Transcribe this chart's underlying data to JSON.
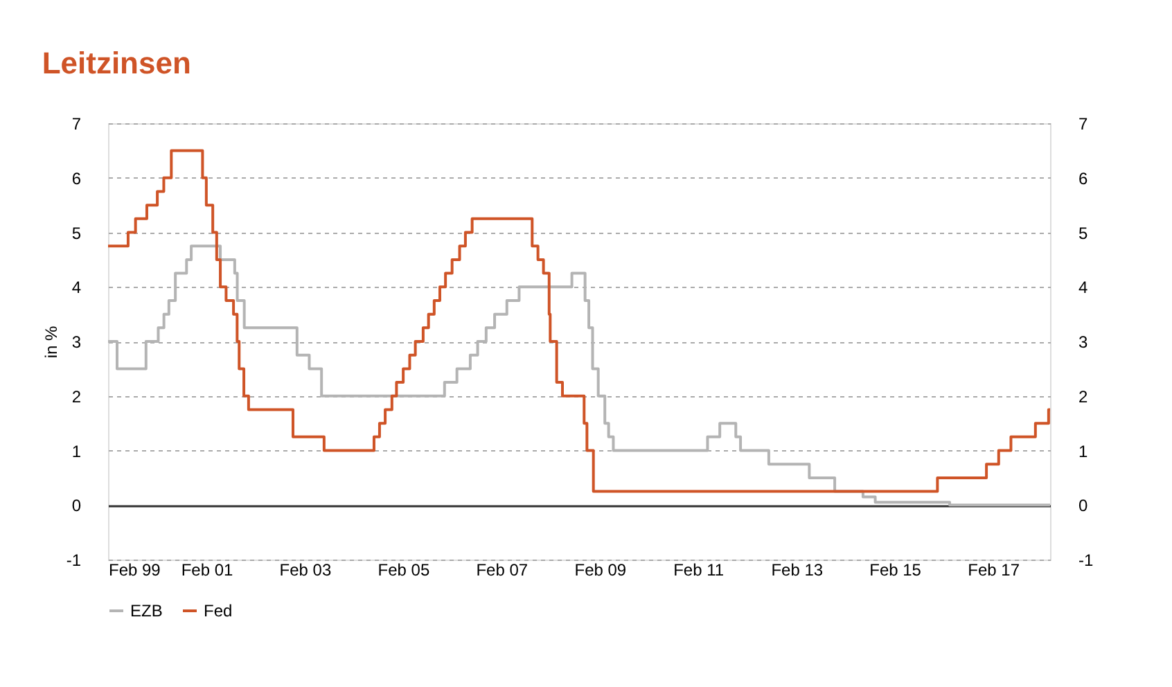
{
  "chart_data": {
    "type": "step",
    "title": "Leitzinsen",
    "ylabel": "in %",
    "xlim": [
      "1999-02-01",
      "2018-04-01"
    ],
    "xticks": [
      {
        "value": "1999-02-01",
        "label": "Feb 99"
      },
      {
        "value": "2001-02-01",
        "label": "Feb 01"
      },
      {
        "value": "2003-02-01",
        "label": "Feb 03"
      },
      {
        "value": "2005-02-01",
        "label": "Feb 05"
      },
      {
        "value": "2007-02-01",
        "label": "Feb 07"
      },
      {
        "value": "2009-02-01",
        "label": "Feb 09"
      },
      {
        "value": "2011-02-01",
        "label": "Feb 11"
      },
      {
        "value": "2013-02-01",
        "label": "Feb 13"
      },
      {
        "value": "2015-02-01",
        "label": "Feb 15"
      },
      {
        "value": "2017-02-01",
        "label": "Feb 17"
      }
    ],
    "ylim": [
      -1,
      7
    ],
    "yticks": [
      -1,
      0,
      1,
      2,
      3,
      4,
      5,
      6,
      7
    ],
    "y2lim": [
      -1,
      7
    ],
    "y2ticks": [
      -1,
      0,
      1,
      2,
      3,
      4,
      5,
      6,
      7
    ],
    "grid": "y",
    "legend": "bottom",
    "line_style": "solid",
    "series": [
      {
        "name": "EZB",
        "color": "#b4b4b4",
        "x": [
          "1999-02-01",
          "1999-04-09",
          "1999-11-10",
          "2000-02-09",
          "2000-03-22",
          "2000-04-28",
          "2000-06-15",
          "2000-09-06",
          "2000-10-11",
          "2001-05-15",
          "2001-08-30",
          "2001-09-18",
          "2001-11-09",
          "2002-12-06",
          "2003-03-07",
          "2003-06-06",
          "2005-12-06",
          "2006-03-08",
          "2006-06-15",
          "2006-08-09",
          "2006-10-11",
          "2006-12-13",
          "2007-03-14",
          "2007-06-13",
          "2008-07-09",
          "2008-10-15",
          "2008-11-12",
          "2008-12-10",
          "2009-01-21",
          "2009-03-11",
          "2009-04-08",
          "2009-05-13",
          "2011-04-13",
          "2011-07-13",
          "2011-11-09",
          "2011-12-14",
          "2012-07-11",
          "2013-05-08",
          "2013-11-13",
          "2014-06-11",
          "2014-09-10",
          "2016-03-16",
          "2018-04-01"
        ],
        "values": [
          3.0,
          2.5,
          3.0,
          3.25,
          3.5,
          3.75,
          4.25,
          4.5,
          4.75,
          4.5,
          4.25,
          3.75,
          3.25,
          2.75,
          2.5,
          2.0,
          2.25,
          2.5,
          2.75,
          3.0,
          3.25,
          3.5,
          3.75,
          4.0,
          4.25,
          3.75,
          3.25,
          2.5,
          2.0,
          1.5,
          1.25,
          1.0,
          1.25,
          1.5,
          1.25,
          1.0,
          0.75,
          0.5,
          0.25,
          0.15,
          0.05,
          0.0,
          0.0
        ]
      },
      {
        "name": "Fed",
        "color": "#cf5427",
        "x": [
          "1999-02-01",
          "1999-06-30",
          "1999-08-24",
          "1999-11-16",
          "2000-02-02",
          "2000-03-21",
          "2000-05-16",
          "2001-01-03",
          "2001-01-31",
          "2001-03-20",
          "2001-04-18",
          "2001-05-15",
          "2001-06-27",
          "2001-08-21",
          "2001-09-17",
          "2001-10-02",
          "2001-11-06",
          "2001-12-11",
          "2002-11-06",
          "2003-06-25",
          "2004-06-30",
          "2004-08-10",
          "2004-09-21",
          "2004-11-10",
          "2004-12-14",
          "2005-02-02",
          "2005-03-22",
          "2005-05-03",
          "2005-06-30",
          "2005-08-09",
          "2005-09-20",
          "2005-11-01",
          "2005-12-13",
          "2006-01-31",
          "2006-03-28",
          "2006-05-10",
          "2006-06-29",
          "2007-09-18",
          "2007-10-31",
          "2007-12-11",
          "2008-01-22",
          "2008-01-30",
          "2008-03-18",
          "2008-04-30",
          "2008-10-08",
          "2008-10-29",
          "2008-12-16",
          "2015-12-16",
          "2016-12-14",
          "2017-03-15",
          "2017-06-14",
          "2017-12-13",
          "2018-03-21",
          "2018-04-01"
        ],
        "values": [
          4.75,
          5.0,
          5.25,
          5.5,
          5.75,
          6.0,
          6.5,
          6.0,
          5.5,
          5.0,
          4.5,
          4.0,
          3.75,
          3.5,
          3.0,
          2.5,
          2.0,
          1.75,
          1.25,
          1.0,
          1.25,
          1.5,
          1.75,
          2.0,
          2.25,
          2.5,
          2.75,
          3.0,
          3.25,
          3.5,
          3.75,
          4.0,
          4.25,
          4.5,
          4.75,
          5.0,
          5.25,
          4.75,
          4.5,
          4.25,
          3.5,
          3.0,
          2.25,
          2.0,
          1.5,
          1.0,
          0.25,
          0.5,
          0.75,
          1.0,
          1.25,
          1.5,
          1.75,
          1.75
        ]
      }
    ]
  }
}
